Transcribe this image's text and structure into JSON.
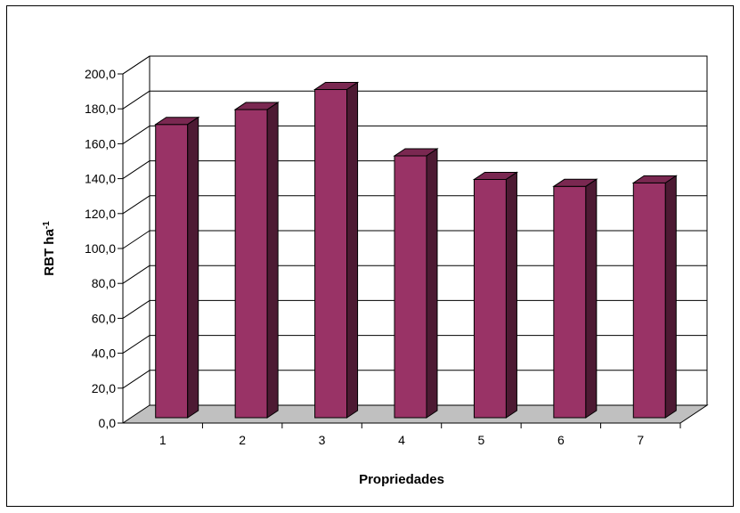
{
  "chart_data": {
    "type": "bar",
    "title": "",
    "xlabel": "Propriedades",
    "ylabel": "RBT ha",
    "ylabel_superscript": "-1",
    "categories": [
      "1",
      "2",
      "3",
      "4",
      "5",
      "6",
      "7"
    ],
    "values": [
      168.0,
      176.5,
      188.0,
      150.0,
      136.5,
      132.5,
      134.5
    ],
    "ylim": [
      0,
      200
    ],
    "yticks": [
      "0,0",
      "20,0",
      "40,0",
      "60,0",
      "80,0",
      "100,0",
      "120,0",
      "140,0",
      "160,0",
      "180,0",
      "200,0"
    ],
    "grid": true,
    "legend": "none",
    "style": "3d-column",
    "colors": {
      "bar_front": "#993366",
      "bar_top": "#7a2851",
      "bar_side": "#4d1a33",
      "floor": "#c0c0c0",
      "grid": "#000000"
    }
  }
}
